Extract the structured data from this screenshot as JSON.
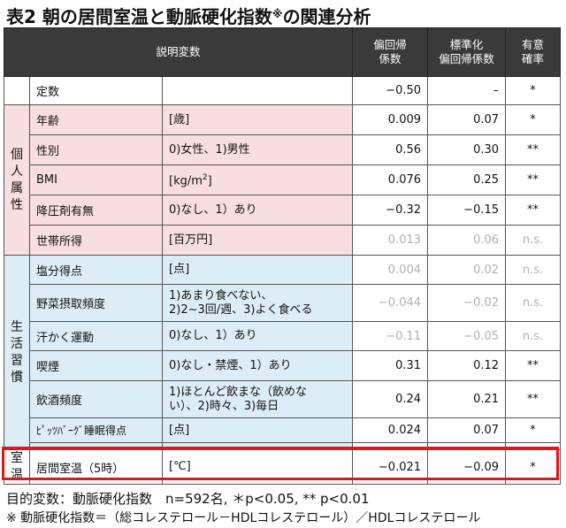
{
  "title": {
    "main": "表2 朝の居間室温と動脈硬化指数",
    "mark": "※",
    "tail": "の関連分析"
  },
  "header": {
    "variables": "説明変数",
    "coef_line1": "偏回帰",
    "coef_line2": "係数",
    "std_line1": "標準化",
    "std_line2": "偏回帰係数",
    "sig_line1": "有意",
    "sig_line2": "確率"
  },
  "groups": {
    "personal": "個人属性",
    "lifestyle": "生活習慣",
    "room": "室温"
  },
  "rows": {
    "intercept": {
      "label": "定数",
      "unit": "",
      "coef": "−0.50",
      "std": "–",
      "sig": "*"
    },
    "age": {
      "label": "年齢",
      "unit": "[歳]",
      "coef": "0.009",
      "std": "0.07",
      "sig": "*"
    },
    "sex": {
      "label": "性別",
      "unit": "0)女性、1)男性",
      "coef": "0.56",
      "std": "0.30",
      "sig": "**"
    },
    "bmi": {
      "label": "BMI",
      "unit_prefix": "[kg/m",
      "unit_sup": "2",
      "unit_suffix": "]",
      "coef": "0.076",
      "std": "0.25",
      "sig": "**"
    },
    "antihyp": {
      "label": "降圧剤有無",
      "unit": "0)なし、1）あり",
      "coef": "−0.32",
      "std": "−0.15",
      "sig": "**"
    },
    "income": {
      "label": "世帯所得",
      "unit": "[百万円]",
      "coef": "0.013",
      "std": "0.06",
      "sig": "n.s."
    },
    "salt": {
      "label": "塩分得点",
      "unit": "[点]",
      "coef": "0.004",
      "std": "0.02",
      "sig": "n.s."
    },
    "veg": {
      "label": "野菜摂取頻度",
      "unit_line1": "1)あまり食べない、",
      "unit_line2": "2)2~3回/週、3)よく食べる",
      "coef": "−0.044",
      "std": "−0.02",
      "sig": "n.s."
    },
    "exercise": {
      "label": "汗かく運動",
      "unit": "0)なし、1）あり",
      "coef": "−0.11",
      "std": "−0.05",
      "sig": "n.s."
    },
    "smoke": {
      "label": "喫煙",
      "unit": "0)なし・禁煙、1）あり",
      "coef": "0.31",
      "std": "0.12",
      "sig": "**"
    },
    "drink": {
      "label": "飲酒頻度",
      "unit_line1": "1)ほとんど飲まな（飲めな",
      "unit_line2": "い）、2)時々、3)毎日",
      "coef": "0.24",
      "std": "0.21",
      "sig": "**"
    },
    "sleep": {
      "label": "ﾋﾟｯﾂﾊﾞｰｸﾞ睡眠得点",
      "unit": "[点]",
      "coef": "0.024",
      "std": "0.07",
      "sig": "*"
    },
    "room_temp": {
      "label": "居間室温（5時）",
      "unit": "[℃]",
      "coef": "−0.021",
      "std": "−0.09",
      "sig": "*"
    }
  },
  "footer": {
    "line1": "目的変数：動脈硬化指数　n=592名, ＊p<0.05, ** p<0.01",
    "line2": "※ 動脈硬化指数＝（総コレステロール－HDLコレステロール）／HDLコレステロール"
  },
  "colors": {
    "personal_bg": "#f8dede",
    "lifestyle_bg": "#ddedf7",
    "header_bg": "#3a3a3a",
    "highlight_frame": "#e3141b",
    "muted_text": "#b0b0b0"
  }
}
